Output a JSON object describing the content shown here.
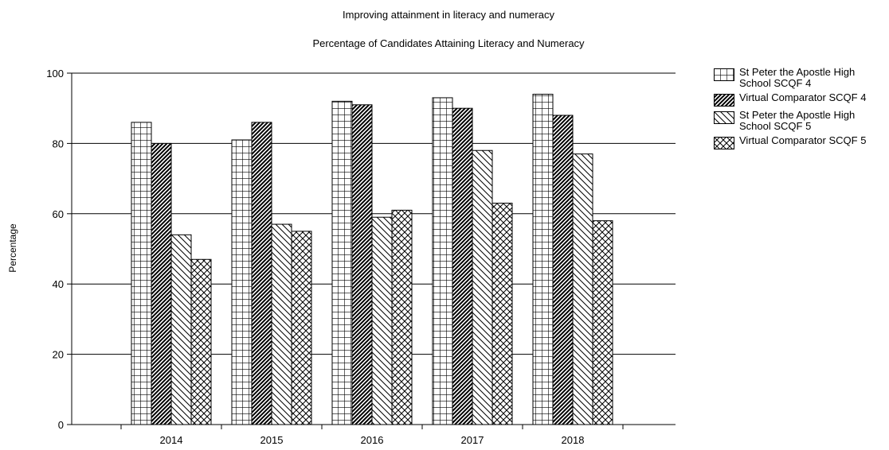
{
  "chart_data": {
    "type": "bar",
    "title": "Improving attainment in literacy and numeracy",
    "subtitle": "Percentage of Candidates Attaining Literacy and Numeracy",
    "xlabel": "",
    "ylabel": "Percentage",
    "ylim": [
      0,
      100
    ],
    "yticks": [
      "0",
      "20",
      "40",
      "60",
      "80",
      "100"
    ],
    "grid": true,
    "legend_position": "right",
    "categories": [
      "2014",
      "2015",
      "2016",
      "2017",
      "2018"
    ],
    "series": [
      {
        "name": "St Peter the Apostle High School SCQF 4",
        "pattern": "grid",
        "values": [
          86,
          81,
          92,
          93,
          94
        ]
      },
      {
        "name": "Virtual Comparator SCQF 4",
        "pattern": "dense-diagonal",
        "values": [
          80,
          86,
          91,
          90,
          88
        ]
      },
      {
        "name": "St Peter the Apostle High School SCQF 5",
        "pattern": "back-diagonal",
        "values": [
          54,
          57,
          59,
          78,
          77
        ]
      },
      {
        "name": "Virtual Comparator SCQF 5",
        "pattern": "crosshatch",
        "values": [
          47,
          55,
          61,
          63,
          58
        ]
      }
    ]
  }
}
